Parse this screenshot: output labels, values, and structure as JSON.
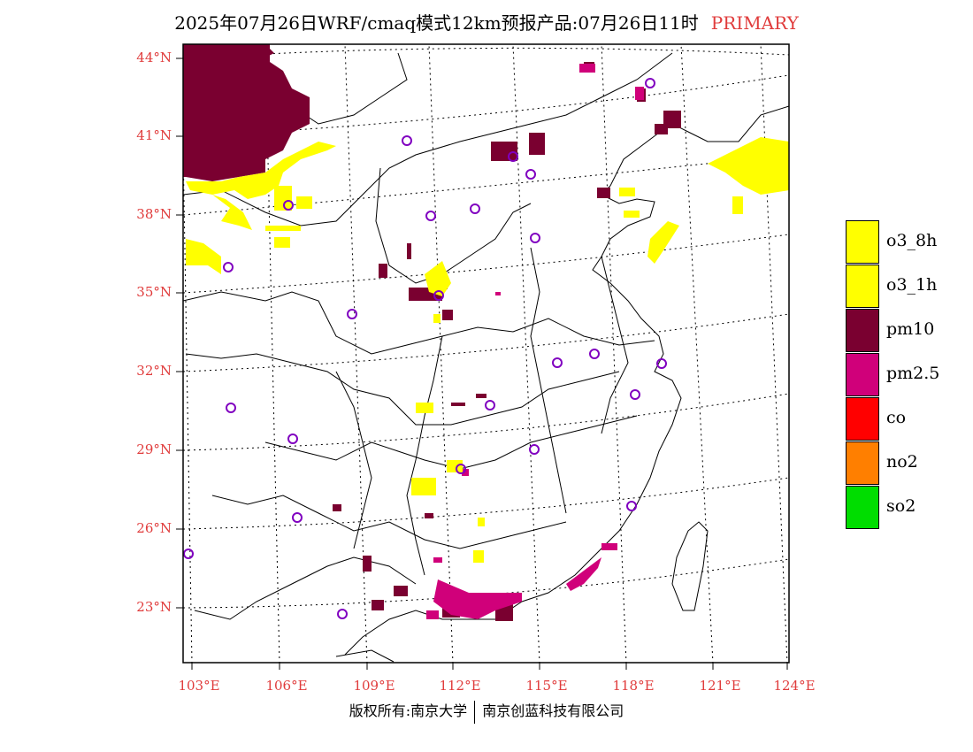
{
  "title": {
    "main": "2025年07月26日WRF/cmaq模式12km预报产品:07月26日11时",
    "tag": "PRIMARY"
  },
  "colors": {
    "o3_8h": "#ffff00",
    "o3_1h": "#ffff00",
    "pm10": "#7a0030",
    "pm25": "#d0007a",
    "co": "#ff0000",
    "no2": "#ff7f00",
    "so2": "#00dd00",
    "station": "#8000c0",
    "axis_label": "#e03c3c"
  },
  "legend": [
    {
      "label": "o3_8h",
      "color": "#ffff00"
    },
    {
      "label": "o3_1h",
      "color": "#ffff00"
    },
    {
      "label": "pm10",
      "color": "#7a0030"
    },
    {
      "label": "pm2.5",
      "color": "#d0007a"
    },
    {
      "label": "co",
      "color": "#ff0000"
    },
    {
      "label": "no2",
      "color": "#ff7f00"
    },
    {
      "label": "so2",
      "color": "#00dd00"
    }
  ],
  "lat_labels": [
    "44°N",
    "41°N",
    "38°N",
    "35°N",
    "32°N",
    "29°N",
    "26°N",
    "23°N"
  ],
  "lon_labels": [
    "103°E",
    "106°E",
    "109°E",
    "112°E",
    "115°E",
    "118°E",
    "121°E",
    "124°E"
  ],
  "footer": {
    "left": "版权所有:南京大学",
    "right": "南京创蓝科技有限公司"
  }
}
